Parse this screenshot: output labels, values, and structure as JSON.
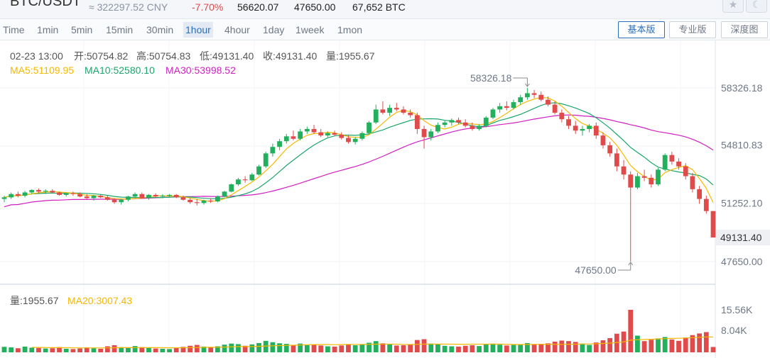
{
  "header": {
    "pair": "BTC/USDT",
    "cny": "≈ 322297.52 CNY",
    "change": "-7.70%",
    "high": "56620.07",
    "low": "47650.00",
    "volume": "67,652 BTC",
    "star_icon": "star-icon",
    "theme_icon": "moon-icon"
  },
  "intervals": [
    "Time",
    "1min",
    "5min",
    "15min",
    "30min",
    "1hour",
    "4hour",
    "1day",
    "1week",
    "1mon"
  ],
  "active_interval": "1hour",
  "modes": [
    "基本版",
    "专业版",
    "深度图"
  ],
  "active_mode": "基本版",
  "ohlc": {
    "date": "02-23 13:00",
    "open": "开:50754.82",
    "high": "高:50754.83",
    "low": "低:49131.40",
    "close": "收:49131.40",
    "vol": "量:1955.67"
  },
  "ma": {
    "ma5": "MA5:51109.95",
    "ma10": "MA10:52580.10",
    "ma30": "MA30:53998.52"
  },
  "volume_panel": {
    "vol": "量:1955.67",
    "ma20": "MA20:3007.43"
  },
  "colors": {
    "up": "#22b05c",
    "down": "#e04a4a",
    "ma5": "#f5b800",
    "ma10": "#1aa66b",
    "ma30": "#d11fc2",
    "volma": "#f5b800"
  },
  "chart_data": {
    "type": "candlestick",
    "price_ticks": [
      58326.18,
      54810.83,
      51252.1,
      47650.0
    ],
    "price_tick_labels": [
      "58326.18",
      "54810.83",
      "51252.10",
      "47650.00"
    ],
    "last_price": 49131.4,
    "last_price_label": "49131.40",
    "max_marker": {
      "value": 58326.18,
      "label": "58326.18"
    },
    "min_marker": {
      "value": 47650.0,
      "label": "47650.00"
    },
    "volume_ticks": [
      15560,
      8040
    ],
    "volume_tick_labels": [
      "15.56K",
      "8.04K"
    ],
    "candles": [
      [
        51500,
        51700,
        51300,
        51600,
        2000
      ],
      [
        51600,
        51900,
        51500,
        51800,
        1800
      ],
      [
        51800,
        51950,
        51600,
        51700,
        1500
      ],
      [
        51700,
        52000,
        51600,
        51900,
        2100
      ],
      [
        51900,
        52100,
        51800,
        52050,
        1700
      ],
      [
        52050,
        52150,
        51850,
        51950,
        1600
      ],
      [
        51950,
        52100,
        51800,
        52000,
        1400
      ],
      [
        52000,
        52100,
        51850,
        51900,
        1500
      ],
      [
        51900,
        51950,
        51700,
        51750,
        1900
      ],
      [
        51750,
        51900,
        51650,
        51850,
        1300
      ],
      [
        51850,
        51950,
        51700,
        51800,
        1200
      ],
      [
        51800,
        51900,
        51600,
        51650,
        1400
      ],
      [
        51650,
        51800,
        51500,
        51550,
        1800
      ],
      [
        51550,
        51750,
        51400,
        51700,
        1500
      ],
      [
        51700,
        51800,
        51550,
        51600,
        1300
      ],
      [
        51600,
        51700,
        51400,
        51450,
        2200
      ],
      [
        51450,
        51550,
        51200,
        51300,
        2600
      ],
      [
        51300,
        51500,
        51150,
        51450,
        1900
      ],
      [
        51450,
        51700,
        51350,
        51650,
        1700
      ],
      [
        51650,
        51900,
        51550,
        51800,
        2300
      ],
      [
        51800,
        51900,
        51500,
        51550,
        1900
      ],
      [
        51550,
        51800,
        51450,
        51750,
        1600
      ],
      [
        51750,
        51850,
        51550,
        51650,
        1400
      ],
      [
        51650,
        51800,
        51550,
        51700,
        1300
      ],
      [
        51700,
        51800,
        51600,
        51750,
        1200
      ],
      [
        51750,
        51800,
        51550,
        51600,
        1600
      ],
      [
        51600,
        51700,
        51400,
        51450,
        2000
      ],
      [
        51450,
        51550,
        51200,
        51300,
        2400
      ],
      [
        51300,
        51500,
        51100,
        51250,
        2700
      ],
      [
        51250,
        51450,
        51150,
        51400,
        2100
      ],
      [
        51400,
        51550,
        51250,
        51350,
        1800
      ],
      [
        51350,
        51700,
        51300,
        51650,
        2200
      ],
      [
        51650,
        52000,
        51600,
        51950,
        2800
      ],
      [
        51950,
        52450,
        51900,
        52400,
        3200
      ],
      [
        52400,
        52800,
        52300,
        52700,
        3000
      ],
      [
        52700,
        52900,
        52500,
        52650,
        2400
      ],
      [
        52650,
        53100,
        52600,
        53000,
        2900
      ],
      [
        53000,
        53600,
        52950,
        53500,
        3400
      ],
      [
        53500,
        54400,
        53400,
        54300,
        4200
      ],
      [
        54300,
        54900,
        54100,
        54700,
        3700
      ],
      [
        54700,
        55200,
        54500,
        55050,
        3300
      ],
      [
        55050,
        55500,
        54900,
        55350,
        3100
      ],
      [
        55350,
        55700,
        55100,
        55200,
        2700
      ],
      [
        55200,
        55800,
        55100,
        55650,
        3200
      ],
      [
        55650,
        55950,
        55500,
        55800,
        2600
      ],
      [
        55800,
        56050,
        55500,
        55600,
        2800
      ],
      [
        55600,
        55800,
        55300,
        55400,
        2500
      ],
      [
        55400,
        55650,
        55300,
        55550,
        2200
      ],
      [
        55550,
        55700,
        55350,
        55450,
        2100
      ],
      [
        55450,
        55600,
        55150,
        55250,
        2500
      ],
      [
        55250,
        55400,
        54900,
        55000,
        3000
      ],
      [
        55000,
        55300,
        54850,
        55200,
        2600
      ],
      [
        55200,
        55650,
        55100,
        55550,
        2900
      ],
      [
        55550,
        56300,
        55500,
        56200,
        3500
      ],
      [
        56200,
        57300,
        56100,
        57000,
        4100
      ],
      [
        57000,
        57500,
        56700,
        56800,
        3300
      ],
      [
        56800,
        57300,
        56600,
        57100,
        2900
      ],
      [
        57100,
        57400,
        56900,
        57000,
        2500
      ],
      [
        57000,
        57200,
        56700,
        56800,
        2600
      ],
      [
        56800,
        57000,
        56500,
        56650,
        2800
      ],
      [
        56650,
        56800,
        55500,
        55800,
        4500
      ],
      [
        55800,
        56000,
        54600,
        55300,
        4800
      ],
      [
        55300,
        55800,
        55100,
        55650,
        3200
      ],
      [
        55650,
        56200,
        55550,
        56050,
        2900
      ],
      [
        56050,
        56350,
        55900,
        56200,
        2400
      ],
      [
        56200,
        56450,
        56000,
        56350,
        2200
      ],
      [
        56350,
        56500,
        56100,
        56200,
        2100
      ],
      [
        56200,
        56400,
        55900,
        56000,
        2400
      ],
      [
        56000,
        56200,
        55700,
        55800,
        2600
      ],
      [
        55800,
        56100,
        55700,
        56000,
        2300
      ],
      [
        56000,
        56600,
        55900,
        56500,
        2900
      ],
      [
        56500,
        57100,
        56400,
        57000,
        3200
      ],
      [
        57000,
        57400,
        56800,
        57200,
        2800
      ],
      [
        57200,
        57500,
        56950,
        57100,
        2500
      ],
      [
        57100,
        57600,
        57000,
        57450,
        2700
      ],
      [
        57450,
        57900,
        57300,
        57750,
        2900
      ],
      [
        57750,
        58326,
        57600,
        58000,
        3400
      ],
      [
        58000,
        58200,
        57700,
        57900,
        3000
      ],
      [
        57900,
        58100,
        57500,
        57600,
        3100
      ],
      [
        57600,
        57800,
        57200,
        57300,
        3300
      ],
      [
        57300,
        57500,
        56700,
        56800,
        3900
      ],
      [
        56800,
        57000,
        56200,
        56400,
        4300
      ],
      [
        56400,
        56600,
        55800,
        56000,
        4100
      ],
      [
        56000,
        56300,
        55500,
        55700,
        3800
      ],
      [
        55700,
        56000,
        55400,
        55800,
        3200
      ],
      [
        55800,
        56100,
        55600,
        56000,
        2700
      ],
      [
        56000,
        56200,
        55200,
        55400,
        3600
      ],
      [
        55400,
        55600,
        54600,
        54800,
        4400
      ],
      [
        54800,
        55000,
        54100,
        54300,
        5200
      ],
      [
        54300,
        54600,
        53200,
        53500,
        6800
      ],
      [
        53500,
        53900,
        52700,
        53000,
        7600
      ],
      [
        53000,
        53200,
        47650,
        52200,
        15560
      ],
      [
        52200,
        53100,
        52100,
        52900,
        6100
      ],
      [
        52900,
        53300,
        52600,
        52800,
        4100
      ],
      [
        52800,
        53000,
        52200,
        52400,
        4600
      ],
      [
        52400,
        53400,
        52300,
        53300,
        5100
      ],
      [
        53300,
        54300,
        53200,
        54200,
        5600
      ],
      [
        54200,
        54400,
        53600,
        53800,
        4700
      ],
      [
        53800,
        54000,
        53300,
        53500,
        4200
      ],
      [
        53500,
        53700,
        52700,
        52900,
        5400
      ],
      [
        52900,
        53100,
        51900,
        52100,
        6300
      ],
      [
        52100,
        52300,
        51200,
        51500,
        6900
      ],
      [
        51500,
        51700,
        50600,
        50755,
        7400
      ],
      [
        50755,
        50755,
        49131,
        49131,
        1956
      ]
    ]
  }
}
